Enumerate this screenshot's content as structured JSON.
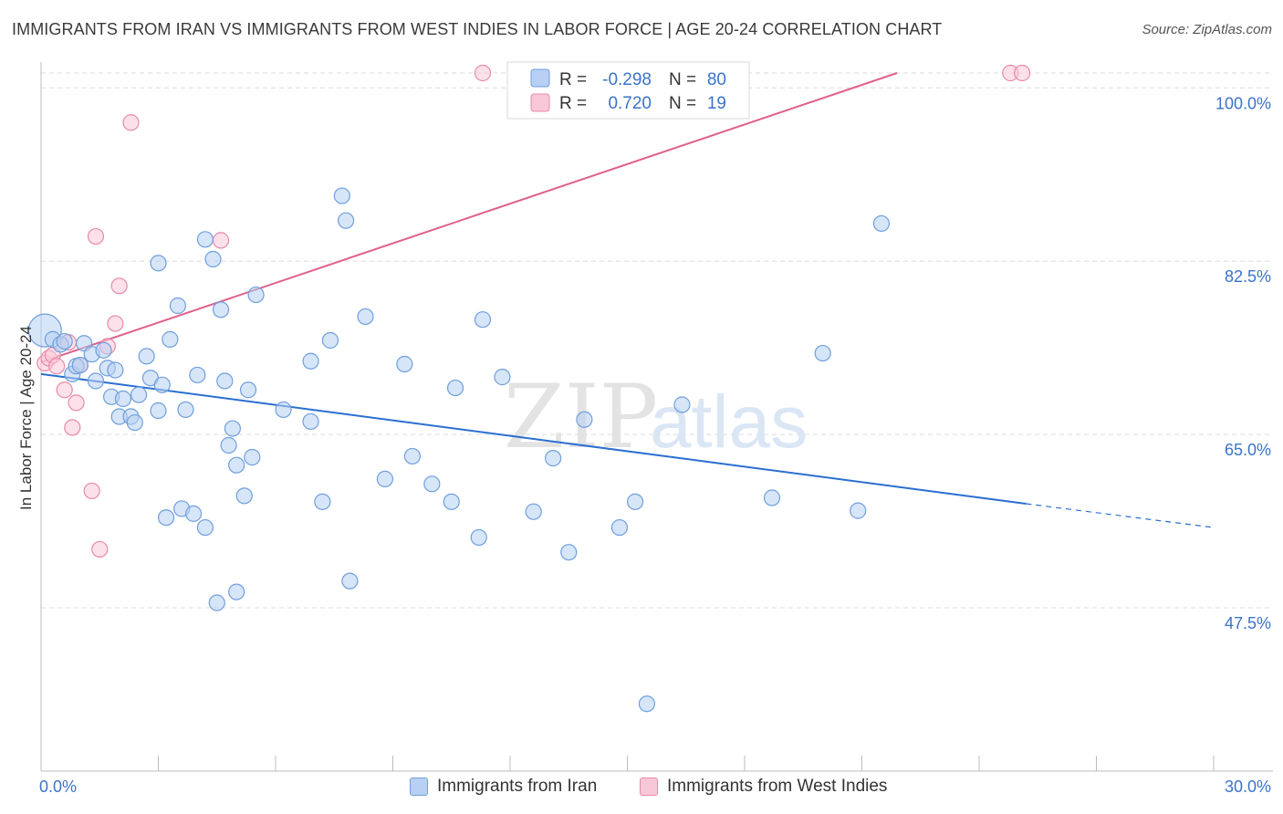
{
  "title": "IMMIGRANTS FROM IRAN VS IMMIGRANTS FROM WEST INDIES IN LABOR FORCE | AGE 20-24 CORRELATION CHART",
  "source": "Source: ZipAtlas.com",
  "watermark": {
    "zip": "ZIP",
    "atlas": "atlas"
  },
  "legend": {
    "iran": {
      "r_label": "R =",
      "r_value": "-0.298",
      "n_label": "N =",
      "n_value": "80"
    },
    "west_indies": {
      "r_label": "R =",
      "r_value": "0.720",
      "n_label": "N =",
      "n_value": "19"
    }
  },
  "x_axis": {
    "min_label": "0.0%",
    "max_label": "30.0%"
  },
  "chart_data": {
    "type": "scatter",
    "title": "IMMIGRANTS FROM IRAN VS IMMIGRANTS FROM WEST INDIES IN LABOR FORCE | AGE 20-24 CORRELATION CHART",
    "xlabel": "",
    "ylabel": "In Labor Force | Age 20-24",
    "xlim": [
      0,
      30
    ],
    "ylim": [
      31,
      101.5
    ],
    "y_ticks": [
      47.5,
      65.0,
      82.5,
      100.0
    ],
    "y_tick_labels": [
      "47.5%",
      "65.0%",
      "82.5%",
      "100.0%"
    ],
    "grid": true,
    "legend_position": "bottom",
    "colors": {
      "iran": "#6f9fdd",
      "iran_fill": "#b7d0f3",
      "iran_line": "#2a6fd0",
      "west_indies": "#e88aa8",
      "west_indies_fill": "#f9c8d8",
      "west_indies_line": "#e0608a",
      "tick_label": "#3b73c9"
    },
    "series": [
      {
        "name": "Immigrants from Iran",
        "key": "iran",
        "stats": {
          "R": -0.298,
          "N": 80
        },
        "trend": {
          "x0": 0,
          "y0": 71.1,
          "x1": 25.2,
          "y1": 58.0,
          "dash_x1": 30,
          "dash_y1": 55.6
        },
        "points": [
          {
            "x": 0.1,
            "y": 75.5,
            "big": true
          },
          {
            "x": 0.3,
            "y": 74.6
          },
          {
            "x": 0.5,
            "y": 74.1
          },
          {
            "x": 0.6,
            "y": 74.4
          },
          {
            "x": 0.8,
            "y": 71.1
          },
          {
            "x": 0.9,
            "y": 71.9
          },
          {
            "x": 1.0,
            "y": 72.0
          },
          {
            "x": 1.1,
            "y": 74.2
          },
          {
            "x": 1.3,
            "y": 73.1
          },
          {
            "x": 1.4,
            "y": 70.4
          },
          {
            "x": 1.6,
            "y": 73.5
          },
          {
            "x": 1.7,
            "y": 71.7
          },
          {
            "x": 1.8,
            "y": 68.8
          },
          {
            "x": 1.9,
            "y": 71.5
          },
          {
            "x": 2.0,
            "y": 66.8
          },
          {
            "x": 2.1,
            "y": 68.6
          },
          {
            "x": 2.3,
            "y": 66.8
          },
          {
            "x": 2.4,
            "y": 66.2
          },
          {
            "x": 2.5,
            "y": 69.0
          },
          {
            "x": 2.7,
            "y": 72.9
          },
          {
            "x": 2.8,
            "y": 70.7
          },
          {
            "x": 3.0,
            "y": 82.3
          },
          {
            "x": 3.0,
            "y": 67.4
          },
          {
            "x": 3.1,
            "y": 70.0
          },
          {
            "x": 3.2,
            "y": 56.6
          },
          {
            "x": 3.3,
            "y": 74.6
          },
          {
            "x": 3.5,
            "y": 78.0
          },
          {
            "x": 3.6,
            "y": 57.5
          },
          {
            "x": 3.7,
            "y": 67.5
          },
          {
            "x": 3.9,
            "y": 57.0
          },
          {
            "x": 4.0,
            "y": 71.0
          },
          {
            "x": 4.2,
            "y": 84.7
          },
          {
            "x": 4.2,
            "y": 55.6
          },
          {
            "x": 4.4,
            "y": 82.7
          },
          {
            "x": 4.5,
            "y": 48.0
          },
          {
            "x": 4.6,
            "y": 77.6
          },
          {
            "x": 4.7,
            "y": 70.4
          },
          {
            "x": 4.8,
            "y": 63.9
          },
          {
            "x": 4.9,
            "y": 65.6
          },
          {
            "x": 5.0,
            "y": 61.9
          },
          {
            "x": 5.0,
            "y": 49.1
          },
          {
            "x": 5.2,
            "y": 58.8
          },
          {
            "x": 5.3,
            "y": 69.5
          },
          {
            "x": 5.4,
            "y": 62.7
          },
          {
            "x": 5.5,
            "y": 79.1
          },
          {
            "x": 6.2,
            "y": 67.5
          },
          {
            "x": 6.9,
            "y": 66.3
          },
          {
            "x": 6.9,
            "y": 72.4
          },
          {
            "x": 7.2,
            "y": 58.2
          },
          {
            "x": 7.4,
            "y": 74.5
          },
          {
            "x": 7.7,
            "y": 89.1
          },
          {
            "x": 7.8,
            "y": 86.6
          },
          {
            "x": 7.9,
            "y": 50.2
          },
          {
            "x": 8.3,
            "y": 76.9
          },
          {
            "x": 8.8,
            "y": 60.5
          },
          {
            "x": 9.3,
            "y": 72.1
          },
          {
            "x": 9.5,
            "y": 62.8
          },
          {
            "x": 10.0,
            "y": 60.0
          },
          {
            "x": 10.5,
            "y": 58.2
          },
          {
            "x": 10.6,
            "y": 69.7
          },
          {
            "x": 11.2,
            "y": 54.6
          },
          {
            "x": 11.3,
            "y": 76.6
          },
          {
            "x": 11.8,
            "y": 70.8
          },
          {
            "x": 12.6,
            "y": 57.2
          },
          {
            "x": 13.1,
            "y": 62.6
          },
          {
            "x": 13.5,
            "y": 53.1
          },
          {
            "x": 13.9,
            "y": 66.5
          },
          {
            "x": 14.8,
            "y": 55.6
          },
          {
            "x": 15.2,
            "y": 58.2
          },
          {
            "x": 16.4,
            "y": 68.0
          },
          {
            "x": 15.5,
            "y": 37.8
          },
          {
            "x": 18.7,
            "y": 58.6
          },
          {
            "x": 20.0,
            "y": 73.2
          },
          {
            "x": 20.9,
            "y": 57.3
          },
          {
            "x": 21.5,
            "y": 86.3
          }
        ]
      },
      {
        "name": "Immigrants from West Indies",
        "key": "west_indies",
        "stats": {
          "R": 0.72,
          "N": 19
        },
        "trend": {
          "x0": 0,
          "y0": 72.3,
          "x1": 21.9,
          "y1": 101.5
        },
        "points": [
          {
            "x": 0.1,
            "y": 72.2
          },
          {
            "x": 0.2,
            "y": 72.7
          },
          {
            "x": 0.3,
            "y": 73.0
          },
          {
            "x": 0.4,
            "y": 71.9
          },
          {
            "x": 0.6,
            "y": 69.5
          },
          {
            "x": 0.7,
            "y": 74.3
          },
          {
            "x": 0.8,
            "y": 65.7
          },
          {
            "x": 0.9,
            "y": 68.2
          },
          {
            "x": 1.0,
            "y": 72.0
          },
          {
            "x": 1.3,
            "y": 59.3
          },
          {
            "x": 1.4,
            "y": 85.0
          },
          {
            "x": 1.5,
            "y": 53.4
          },
          {
            "x": 1.7,
            "y": 73.9
          },
          {
            "x": 1.9,
            "y": 76.2
          },
          {
            "x": 2.0,
            "y": 80.0
          },
          {
            "x": 2.3,
            "y": 96.5
          },
          {
            "x": 4.6,
            "y": 84.6
          },
          {
            "x": 11.3,
            "y": 101.5
          },
          {
            "x": 24.8,
            "y": 101.5
          },
          {
            "x": 25.1,
            "y": 101.5
          }
        ]
      }
    ]
  },
  "bottom_legend": {
    "iran_label": "Immigrants from Iran",
    "west_indies_label": "Immigrants from West Indies"
  }
}
